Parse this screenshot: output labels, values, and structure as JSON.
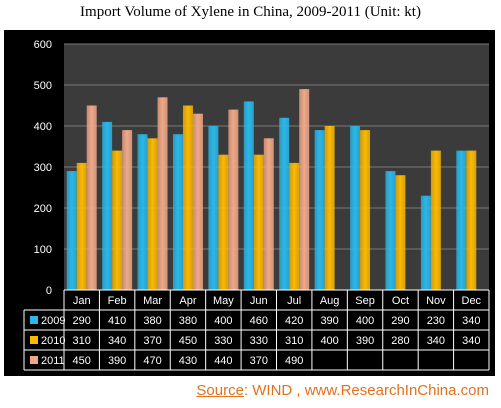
{
  "title": "Import Volume of Xylene in China, 2009-2011 (Unit: kt)",
  "source": {
    "label": "Source",
    "text": ": WIND , www.ResearchInChina.com"
  },
  "chart_data": {
    "type": "bar",
    "title": "Import Volume of Xylene in China, 2009-2011 (Unit: kt)",
    "xlabel": "",
    "ylabel": "",
    "ylim": [
      0,
      600
    ],
    "yticks": [
      0,
      100,
      200,
      300,
      400,
      500,
      600
    ],
    "grid": true,
    "legend": "data-table-left",
    "categories": [
      "Jan",
      "Feb",
      "Mar",
      "Apr",
      "May",
      "Jun",
      "Jul",
      "Aug",
      "Sep",
      "Oct",
      "Nov",
      "Dec"
    ],
    "series": [
      {
        "name": "2009",
        "color": "#29b8ea",
        "values": [
          290,
          410,
          380,
          380,
          400,
          460,
          420,
          390,
          400,
          290,
          230,
          340
        ]
      },
      {
        "name": "2010",
        "color": "#fbb900",
        "values": [
          310,
          340,
          370,
          450,
          330,
          330,
          310,
          400,
          390,
          280,
          340,
          340
        ]
      },
      {
        "name": "2011",
        "color": "#f0a888",
        "values": [
          450,
          390,
          470,
          430,
          440,
          370,
          490,
          null,
          null,
          null,
          null,
          null
        ]
      }
    ]
  }
}
